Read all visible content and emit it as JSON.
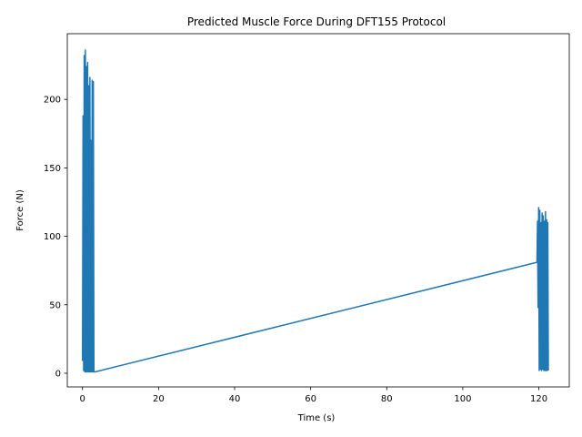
{
  "chart_data": {
    "type": "line",
    "title": "Predicted Muscle Force During DFT155 Protocol",
    "xlabel": "Time (s)",
    "ylabel": "Force (N)",
    "xlim": [
      -4,
      128
    ],
    "ylim": [
      -10,
      248
    ],
    "xticks": [
      0,
      20,
      40,
      60,
      80,
      100,
      120
    ],
    "yticks": [
      0,
      50,
      100,
      150,
      200
    ],
    "grid": false,
    "legend": "none",
    "line_color": "#1f77b4",
    "series": [
      {
        "x": [
          0.0,
          0.15,
          0.3,
          0.45,
          0.6,
          0.75,
          0.9,
          1.05,
          1.2,
          1.35,
          1.5,
          1.65,
          1.8,
          1.95,
          2.1,
          2.25,
          2.4,
          2.55,
          2.7,
          2.85,
          3.0,
          3.3,
          119.5,
          119.65,
          119.8,
          119.95,
          120.1,
          120.25,
          120.4,
          120.55,
          120.7,
          120.85,
          121.0,
          121.15,
          121.3,
          121.45,
          121.6,
          121.75,
          121.9,
          122.05,
          122.2,
          122.35,
          122.5
        ],
        "y": [
          9,
          188,
          2,
          232,
          1,
          236,
          1,
          224,
          1,
          227,
          1,
          210,
          1,
          216,
          1,
          170,
          1,
          214,
          1,
          213,
          1,
          1,
          81,
          111,
          48,
          121,
          2,
          119,
          3,
          110,
          2,
          117,
          3,
          115,
          2,
          111,
          2,
          118,
          2,
          112,
          2,
          110,
          2
        ]
      }
    ]
  }
}
